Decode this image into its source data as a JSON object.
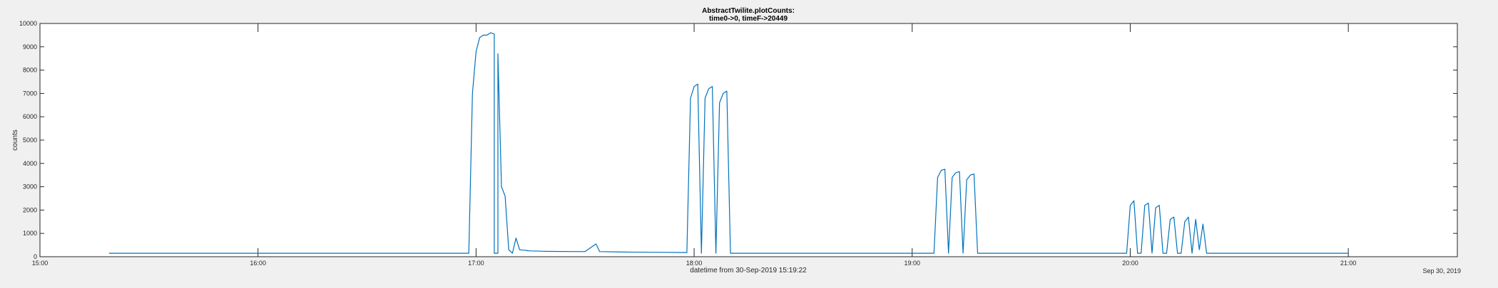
{
  "chart_data": {
    "type": "line",
    "title": "AbstractTwilite.plotCounts:",
    "subtitle": "time0->0, timeF->20449",
    "xlabel": "datetime from 30-Sep-2019 15:19:22",
    "ylabel": "counts",
    "date_label": "Sep 30, 2019",
    "x_unit": "time of day (HH:MM)",
    "xlim": [
      "15:00",
      "21:30"
    ],
    "ylim": [
      0,
      10000
    ],
    "x_ticks": [
      "15:00",
      "16:00",
      "17:00",
      "18:00",
      "19:00",
      "20:00",
      "21:00"
    ],
    "y_ticks": [
      0,
      1000,
      2000,
      3000,
      4000,
      5000,
      6000,
      7000,
      8000,
      9000,
      10000
    ],
    "grid": false,
    "line_color": "#0072bd",
    "series": [
      {
        "x": [
          "15:19",
          "16:58",
          "16:59",
          "17:00",
          "17:01",
          "17:02",
          "17:03",
          "17:04",
          "17:05",
          "17:05",
          "17:06",
          "17:06",
          "17:07",
          "17:08",
          "17:09",
          "17:10",
          "17:11",
          "17:12",
          "17:13",
          "17:14",
          "17:14",
          "17:15",
          "17:20",
          "17:30",
          "17:33",
          "17:34",
          "17:40",
          "17:50",
          "17:58",
          "17:59",
          "18:00",
          "18:01",
          "18:02",
          "18:03",
          "18:04",
          "18:05",
          "18:06",
          "18:07",
          "18:08",
          "18:09",
          "18:10",
          "18:11",
          "18:12",
          "18:13",
          "18:14",
          "18:15",
          "18:16",
          "18:17",
          "18:20",
          "18:40",
          "19:00",
          "19:06",
          "19:07",
          "19:08",
          "19:09",
          "19:10",
          "19:11",
          "19:12",
          "19:13",
          "19:14",
          "19:15",
          "19:16",
          "19:17",
          "19:18",
          "19:19",
          "19:20",
          "19:21",
          "19:22",
          "19:23",
          "19:24",
          "19:25",
          "19:26",
          "19:27",
          "19:28",
          "19:29",
          "19:30",
          "19:40",
          "19:59",
          "20:00",
          "20:01",
          "20:02",
          "20:03",
          "20:04",
          "20:05",
          "20:06",
          "20:07",
          "20:08",
          "20:09",
          "20:10",
          "20:11",
          "20:12",
          "20:13",
          "20:14",
          "20:15",
          "20:16",
          "20:17",
          "20:18",
          "20:19",
          "20:20",
          "20:21",
          "20:22",
          "20:23",
          "20:24",
          "20:25",
          "20:26",
          "20:27",
          "20:28",
          "20:29",
          "20:30",
          "20:31",
          "20:32",
          "20:33",
          "20:34",
          "20:35",
          "20:36",
          "20:37",
          "20:38",
          "20:40",
          "21:00"
        ],
        "y": [
          150,
          150,
          7000,
          8800,
          9400,
          9500,
          9500,
          9600,
          9550,
          150,
          150,
          8700,
          3000,
          2600,
          300,
          150,
          800,
          300,
          280,
          270,
          260,
          250,
          230,
          220,
          550,
          220,
          200,
          190,
          180,
          6800,
          7300,
          7400,
          150,
          6800,
          7200,
          7300,
          150,
          6600,
          7000,
          7100,
          150,
          150,
          150,
          150,
          150,
          150,
          150,
          150,
          150,
          150,
          150,
          150,
          3400,
          3700,
          3750,
          150,
          3400,
          3600,
          3650,
          150,
          3300,
          3500,
          3550,
          150,
          150,
          150,
          150,
          150,
          150,
          150,
          150,
          150,
          150,
          150,
          150,
          150,
          150,
          150,
          2200,
          2400,
          150,
          150,
          2200,
          2300,
          150,
          2100,
          2200,
          150,
          150,
          1600,
          1700,
          150,
          150,
          1500,
          1700,
          150,
          1600,
          300,
          1400,
          150,
          150,
          150,
          150,
          150,
          150,
          150,
          150,
          150,
          150,
          150,
          150,
          150,
          150,
          150,
          150,
          150,
          150,
          150,
          150
        ]
      }
    ]
  }
}
